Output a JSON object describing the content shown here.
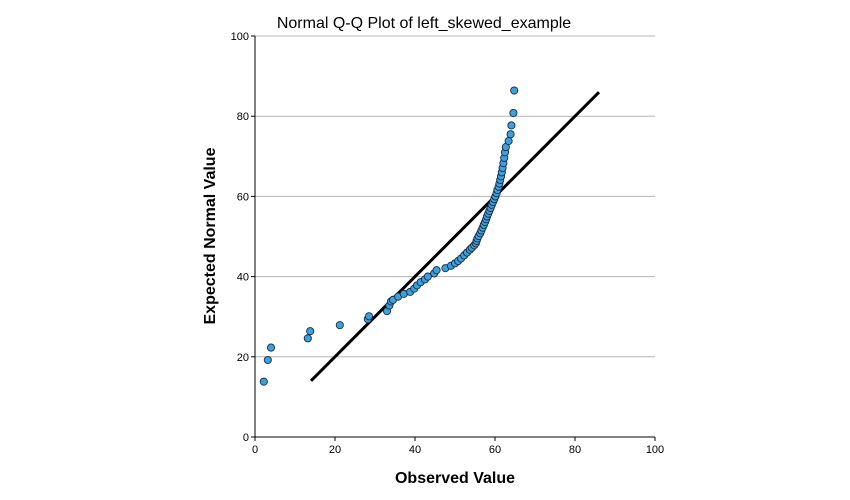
{
  "chart_data": {
    "type": "scatter",
    "title": "Normal Q-Q Plot of left_skewed_example",
    "xlabel": "Observed Value",
    "ylabel": "Expected Normal Value",
    "xlim": [
      0,
      100
    ],
    "ylim": [
      0,
      100
    ],
    "xticks": [
      "0",
      "20",
      "40",
      "60",
      "80",
      "100"
    ],
    "yticks": [
      "0",
      "20",
      "40",
      "60",
      "80",
      "100"
    ],
    "grid": "horizontal",
    "marker_color": "#3aa0e0",
    "marker_edge_color": "#1a2a3a",
    "reference_line": {
      "x": [
        14,
        86
      ],
      "y": [
        14,
        86
      ],
      "color": "#000000"
    },
    "points": [
      [
        2.2,
        13.8
      ],
      [
        3.2,
        19.2
      ],
      [
        4.0,
        22.3
      ],
      [
        13.2,
        24.6
      ],
      [
        13.8,
        26.4
      ],
      [
        21.2,
        27.9
      ],
      [
        28.2,
        29.4
      ],
      [
        28.5,
        30.1
      ],
      [
        33.0,
        31.4
      ],
      [
        33.6,
        32.8
      ],
      [
        34.0,
        33.8
      ],
      [
        34.5,
        34.2
      ],
      [
        35.8,
        35.0
      ],
      [
        37.2,
        35.7
      ],
      [
        38.8,
        36.2
      ],
      [
        39.8,
        37.0
      ],
      [
        40.5,
        37.8
      ],
      [
        41.4,
        38.6
      ],
      [
        42.5,
        39.3
      ],
      [
        43.2,
        40.0
      ],
      [
        44.8,
        40.8
      ],
      [
        45.4,
        41.6
      ],
      [
        47.6,
        42.1
      ],
      [
        49.0,
        42.7
      ],
      [
        50.0,
        43.3
      ],
      [
        50.8,
        43.9
      ],
      [
        51.5,
        44.5
      ],
      [
        52.3,
        45.3
      ],
      [
        53.0,
        46.0
      ],
      [
        53.7,
        46.7
      ],
      [
        54.2,
        47.2
      ],
      [
        54.8,
        47.8
      ],
      [
        55.2,
        48.3
      ],
      [
        55.4,
        48.9
      ],
      [
        55.6,
        49.5
      ],
      [
        55.9,
        50.1
      ],
      [
        56.3,
        50.8
      ],
      [
        56.6,
        51.5
      ],
      [
        56.9,
        52.2
      ],
      [
        57.2,
        52.9
      ],
      [
        57.5,
        53.6
      ],
      [
        57.8,
        54.3
      ],
      [
        58.0,
        55.0
      ],
      [
        58.3,
        55.7
      ],
      [
        58.6,
        56.4
      ],
      [
        58.9,
        57.1
      ],
      [
        59.2,
        57.9
      ],
      [
        59.5,
        58.6
      ],
      [
        59.8,
        59.3
      ],
      [
        60.1,
        60.0
      ],
      [
        60.4,
        60.8
      ],
      [
        60.6,
        61.6
      ],
      [
        60.9,
        62.4
      ],
      [
        61.1,
        63.2
      ],
      [
        61.3,
        64.1
      ],
      [
        61.5,
        65.0
      ],
      [
        61.7,
        66.0
      ],
      [
        61.9,
        67.1
      ],
      [
        62.1,
        68.3
      ],
      [
        62.3,
        69.6
      ],
      [
        62.5,
        71.0
      ],
      [
        62.7,
        72.3
      ],
      [
        63.4,
        73.8
      ],
      [
        63.9,
        75.5
      ],
      [
        64.1,
        77.7
      ],
      [
        64.6,
        80.8
      ],
      [
        64.8,
        86.4
      ]
    ]
  }
}
